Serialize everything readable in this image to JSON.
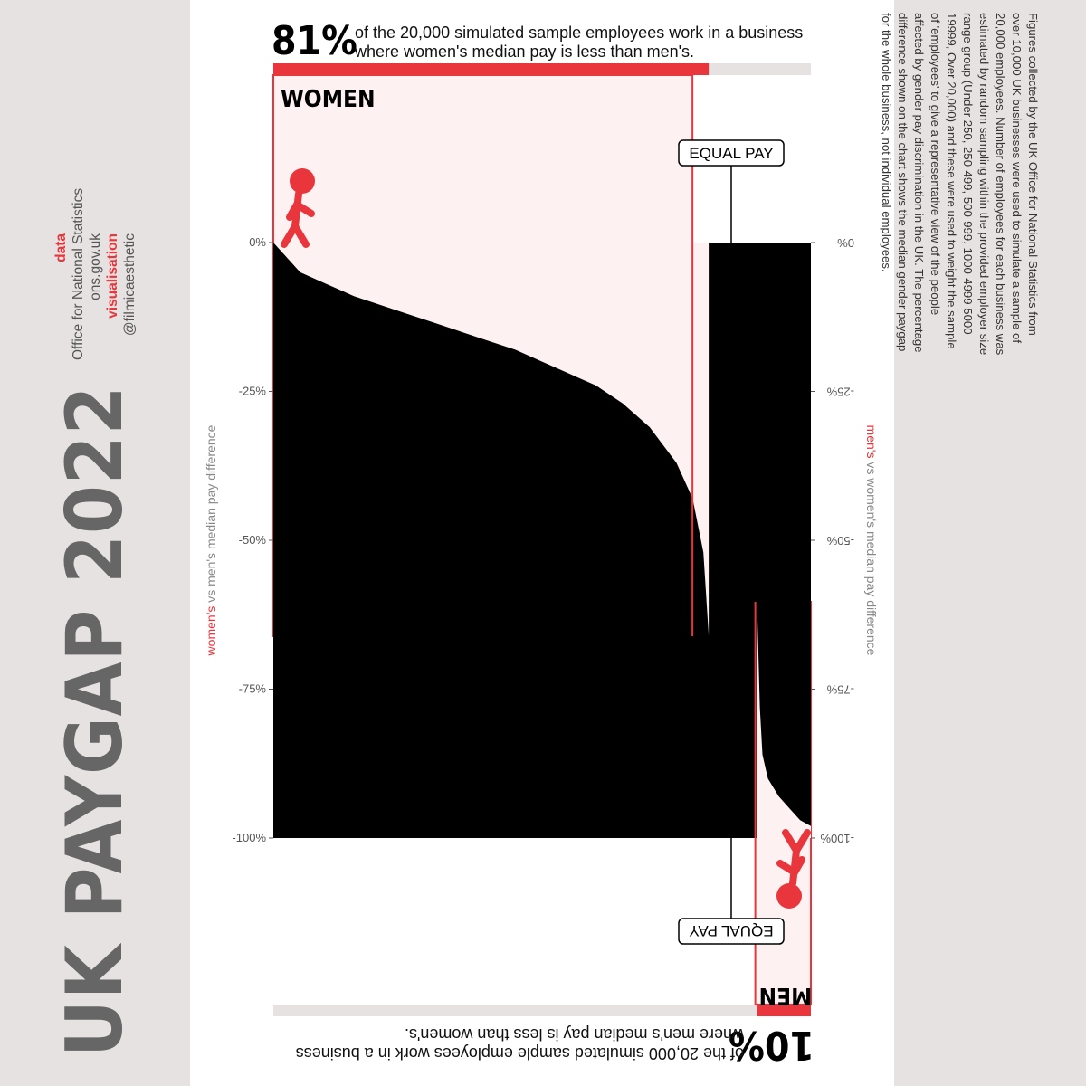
{
  "title": "UK PAYGAP 2022",
  "credits": {
    "data_label": "data",
    "data_source_1": "Office for National Statistics",
    "data_source_2": "ons.gov.uk",
    "vis_label": "visualisation",
    "vis_author": "@filmicaesthetic"
  },
  "notes": "Figures collected by the UK Office for National Statistics from over 10,000 UK businesses were used to simulate a sample of 20,000 employees. Number of employees for each business was estimated by random sampling within the provided employer size range group (Under 250, 250-499, 500-999, 1000-4999 5000-19999, Over 20,000) and these were used to weight the sample of 'employees' to give a representative view of the people affected by gender pay discrimination in the UK. The percentage difference shown on the chart shows the median gender paygap for the whole business, not individual employees.",
  "headline": {
    "percent": "81%",
    "text": "of the 20,000 simulated sample employees work in a business where women's median pay is less than men's."
  },
  "footline": {
    "percent": "10%",
    "text": "of the 20,000 simulated sample employees work in a business where men's median pay is less than women's."
  },
  "chart_data": {
    "type": "area",
    "groups": [
      {
        "label": "WOMEN",
        "share": 0.81
      },
      {
        "label": "EQUAL PAY",
        "share": 0.09
      },
      {
        "label": "MEN",
        "share": 0.1
      }
    ],
    "equal_pay_label": "EQUAL PAY",
    "y_left": {
      "title_highlight": "women's",
      "title_rest": " vs men's median pay difference",
      "ticks": [
        "0%",
        "-25%",
        "-50%",
        "-75%",
        "-100%"
      ],
      "tick_values": [
        0,
        -25,
        -50,
        -75,
        -100
      ],
      "ylim": [
        -100,
        0
      ]
    },
    "y_right": {
      "title_highlight": "men's",
      "title_rest": " vs women's median pay difference",
      "ticks": [
        "-100%",
        "-75%",
        "-50%",
        "-25%",
        "0%"
      ],
      "tick_values": [
        -100,
        -75,
        -50,
        -25,
        0
      ]
    },
    "women_curve": {
      "x_share": [
        0,
        0.05,
        0.1,
        0.15,
        0.2,
        0.25,
        0.3,
        0.35,
        0.4,
        0.45,
        0.5,
        0.55,
        0.6,
        0.65,
        0.7,
        0.75,
        0.78,
        0.8,
        0.81
      ],
      "gap_pct": [
        0,
        -5,
        -7,
        -9,
        -10.5,
        -12,
        -13.5,
        -15,
        -16.5,
        -18,
        -20,
        -22,
        -24,
        -27,
        -31,
        -37,
        -43,
        -52,
        -66
      ]
    },
    "men_curve": {
      "x_share": [
        0.9,
        0.905,
        0.91,
        0.92,
        0.94,
        0.96,
        0.98,
        1.0
      ],
      "gap_pct": [
        -61,
        -78,
        -86,
        -90,
        -93,
        -95,
        -97,
        -98
      ]
    },
    "colors": {
      "accent": "#e8363c",
      "fill": "#000000",
      "panel": "#fdf1f2",
      "track": "#e6e2e1"
    },
    "grid": false
  }
}
